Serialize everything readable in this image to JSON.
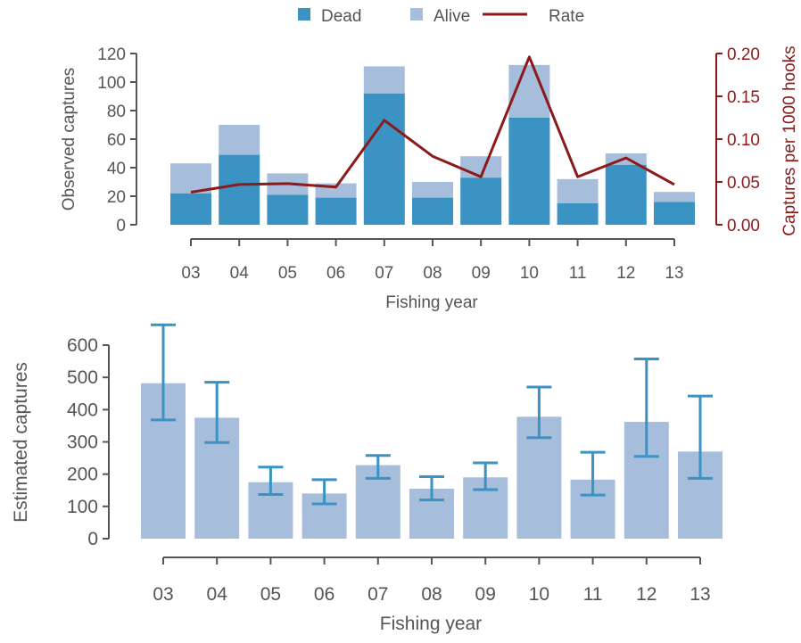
{
  "colors": {
    "dead": "#3a93c3",
    "alive": "#a6bddb",
    "rate": "#8b1a1a",
    "axis": "#555555",
    "errorbar": "#3a93c3",
    "text": "#555555"
  },
  "legend": {
    "dead": "Dead",
    "alive": "Alive",
    "rate": "Rate"
  },
  "chart_data": [
    {
      "type": "bar",
      "stacked": true,
      "categories": [
        "03",
        "04",
        "05",
        "06",
        "07",
        "08",
        "09",
        "10",
        "11",
        "12",
        "13"
      ],
      "series": [
        {
          "name": "Dead",
          "values": [
            22,
            49,
            21,
            19,
            92,
            19,
            33,
            75,
            15,
            42,
            16
          ]
        },
        {
          "name": "Alive",
          "values": [
            21,
            21,
            15,
            10,
            19,
            11,
            15,
            37,
            17,
            8,
            7
          ]
        }
      ],
      "rate_series": {
        "name": "Rate",
        "values": [
          0.038,
          0.047,
          0.048,
          0.044,
          0.122,
          0.08,
          0.056,
          0.196,
          0.056,
          0.078,
          0.047
        ]
      },
      "xlabel": "Fishing year",
      "ylabel": "Observed captures",
      "ylabel_right": "Captures per 1000 hooks",
      "ylim": [
        0,
        120
      ],
      "yticks": [
        "0",
        "20",
        "40",
        "60",
        "80",
        "100",
        "120"
      ],
      "ylim_right": [
        0,
        0.2
      ],
      "yticks_right": [
        "0.00",
        "0.05",
        "0.10",
        "0.15",
        "0.20"
      ],
      "legend_position": "top"
    },
    {
      "type": "bar",
      "categories": [
        "03",
        "04",
        "05",
        "06",
        "07",
        "08",
        "09",
        "10",
        "11",
        "12",
        "13"
      ],
      "values": [
        482,
        375,
        175,
        140,
        228,
        155,
        190,
        378,
        183,
        362,
        270
      ],
      "error_low": [
        368,
        298,
        137,
        108,
        187,
        120,
        152,
        313,
        135,
        255,
        187
      ],
      "error_high": [
        663,
        485,
        222,
        183,
        258,
        192,
        235,
        470,
        268,
        557,
        442
      ],
      "xlabel": "Fishing year",
      "ylabel": "Estimated captures",
      "ylim": [
        0,
        600
      ],
      "yticks": [
        "0",
        "100",
        "200",
        "300",
        "400",
        "500",
        "600"
      ]
    }
  ]
}
